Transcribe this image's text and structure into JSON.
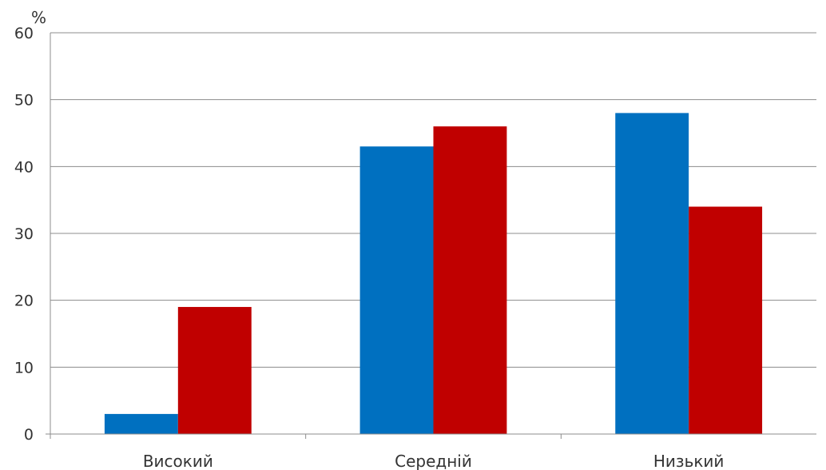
{
  "chart_data": {
    "type": "bar",
    "title": "",
    "xlabel": "",
    "ylabel": "%",
    "ylim": [
      0,
      60
    ],
    "yticks": [
      0,
      10,
      20,
      30,
      40,
      50,
      60
    ],
    "grid": true,
    "legend": "none",
    "categories": [
      "Високий",
      "Середній",
      "Низький"
    ],
    "series": [
      {
        "color": "#0070C0",
        "values": [
          3,
          43,
          48
        ]
      },
      {
        "color": "#C00000",
        "values": [
          19,
          46,
          34
        ]
      }
    ]
  }
}
